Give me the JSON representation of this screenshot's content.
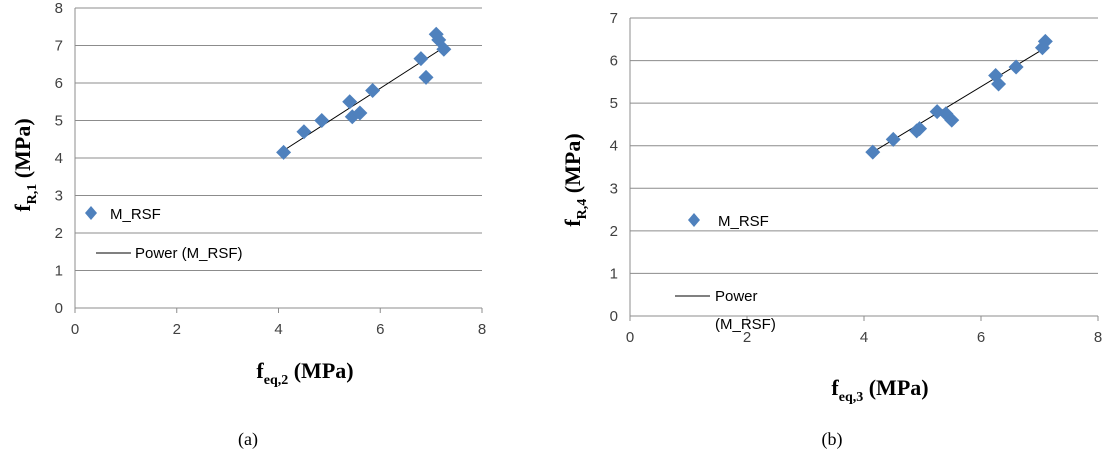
{
  "chart_data": [
    {
      "type": "scatter",
      "caption": "(a)",
      "xlabel": {
        "main": "f",
        "sub": "eq,2",
        "unit": " (MPa)"
      },
      "ylabel": {
        "main": "f",
        "sub": "R,1",
        "unit": " (MPa)"
      },
      "xlim": [
        0,
        8
      ],
      "ylim": [
        0,
        8
      ],
      "xticks": [
        "0",
        "2",
        "4",
        "6",
        "8"
      ],
      "yticks": [
        "0",
        "1",
        "2",
        "3",
        "4",
        "5",
        "6",
        "7",
        "8"
      ],
      "grid": "horizontal",
      "legend_placement": "left",
      "series": [
        {
          "name": "M_RSF",
          "color": "#4f81bd",
          "marker": "diamond",
          "x": [
            4.1,
            4.5,
            4.85,
            5.4,
            5.45,
            5.6,
            5.85,
            6.8,
            6.9,
            7.1,
            7.15,
            7.25
          ],
          "y": [
            4.15,
            4.7,
            5.0,
            5.5,
            5.1,
            5.2,
            5.8,
            6.65,
            6.15,
            7.3,
            7.15,
            6.9
          ]
        }
      ],
      "trendline": {
        "name": "Power (M_RSF)",
        "color": "#000000",
        "x": [
          4.1,
          7.25
        ],
        "y": [
          4.2,
          6.95
        ]
      }
    },
    {
      "type": "scatter",
      "caption": "(b)",
      "xlabel": {
        "main": "f",
        "sub": "eq,3",
        "unit": " (MPa)"
      },
      "ylabel": {
        "main": "f",
        "sub": "R,4",
        "unit": " (MPa)"
      },
      "xlim": [
        0,
        8
      ],
      "ylim": [
        0,
        7
      ],
      "xticks": [
        "0",
        "2",
        "4",
        "6",
        "8"
      ],
      "yticks": [
        "0",
        "1",
        "2",
        "3",
        "4",
        "5",
        "6",
        "7"
      ],
      "grid": "horizontal",
      "legend_placement": "left",
      "series": [
        {
          "name": "M_RSF",
          "color": "#4f81bd",
          "marker": "diamond",
          "x": [
            4.15,
            4.5,
            4.9,
            4.95,
            5.25,
            5.4,
            5.5,
            6.25,
            6.3,
            6.6,
            7.05,
            7.1
          ],
          "y": [
            3.85,
            4.15,
            4.35,
            4.4,
            4.8,
            4.75,
            4.6,
            5.65,
            5.45,
            5.85,
            6.3,
            6.45
          ]
        }
      ],
      "trendline": {
        "name": [
          "Power",
          "(M_RSF)"
        ],
        "color": "#000000",
        "x": [
          4.15,
          7.1
        ],
        "y": [
          3.85,
          6.3
        ]
      }
    }
  ]
}
